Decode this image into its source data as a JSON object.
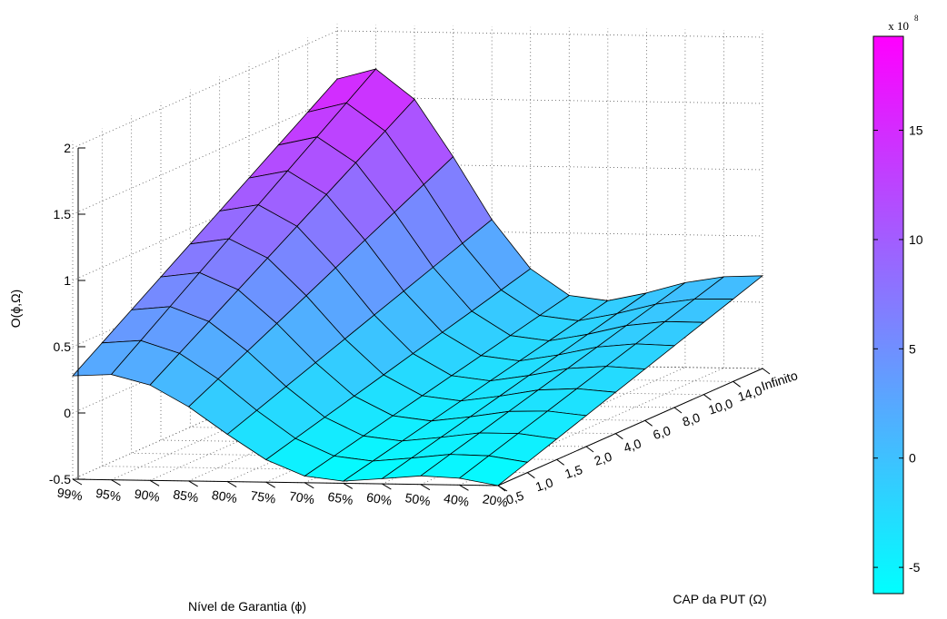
{
  "chart_data": {
    "type": "surface",
    "zlabel": "O(ϕ,Ω)",
    "xlabel": "Nível de Garantia (ϕ)",
    "ylabel": "CAP da PUT (Ω)",
    "x_ticks": [
      "99%",
      "95%",
      "90%",
      "85%",
      "80%",
      "75%",
      "70%",
      "65%",
      "60%",
      "50%",
      "40%",
      "20%"
    ],
    "y_ticks": [
      "0,5",
      "1,0",
      "1,5",
      "2,0",
      "4,0",
      "6,0",
      "8,0",
      "10,0",
      "14,0",
      "Infinito"
    ],
    "z_ticks": [
      "-0.5",
      "0",
      "0.5",
      "1",
      "1.5",
      "2"
    ],
    "zlim": [
      -0.5,
      2
    ],
    "grid": true,
    "colorbar": {
      "multiplier": "x 10",
      "exponent": "8",
      "ticks": [
        "-5",
        "0",
        "5",
        "10",
        "15"
      ],
      "colors": [
        "#00ffff",
        "#ff00ff"
      ]
    }
  }
}
